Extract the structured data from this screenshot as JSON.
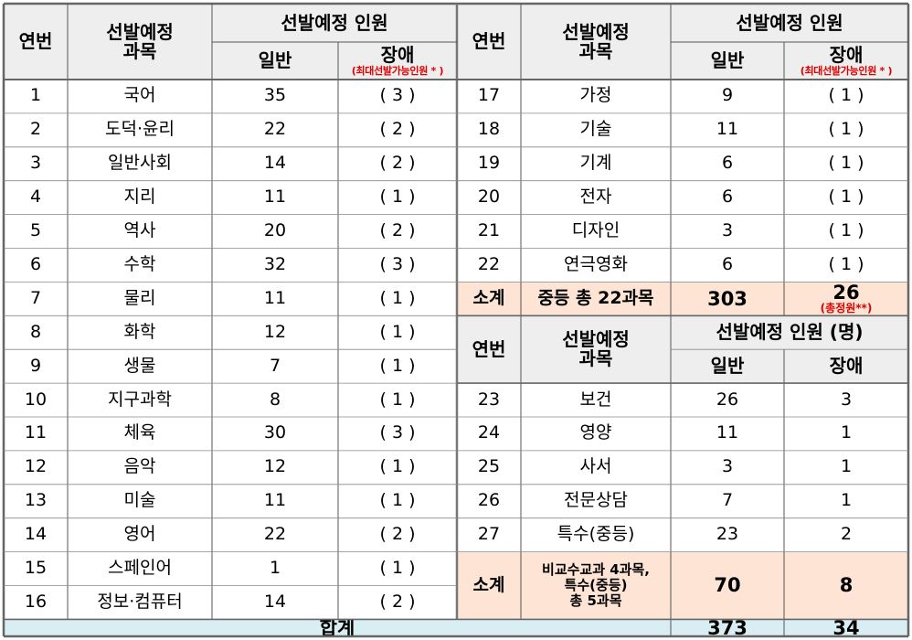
{
  "header": {
    "no": "연번",
    "subject": "선발예정\n과목",
    "quota": "선발예정 인원",
    "general": "일반",
    "disabled": "장애",
    "disabled_note": "(최대선발가능인원 * )",
    "quota_unit": "선발예정 인원 (명)"
  },
  "left_rows": [
    {
      "no": "1",
      "subject": "국어",
      "general": "35",
      "disabled": "( 3 )"
    },
    {
      "no": "2",
      "subject": "도덕·윤리",
      "general": "22",
      "disabled": "( 2 )"
    },
    {
      "no": "3",
      "subject": "일반사회",
      "general": "14",
      "disabled": "( 2 )"
    },
    {
      "no": "4",
      "subject": "지리",
      "general": "11",
      "disabled": "( 1 )"
    },
    {
      "no": "5",
      "subject": "역사",
      "general": "20",
      "disabled": "( 2 )"
    },
    {
      "no": "6",
      "subject": "수학",
      "general": "32",
      "disabled": "( 3 )"
    },
    {
      "no": "7",
      "subject": "물리",
      "general": "11",
      "disabled": "( 1 )"
    },
    {
      "no": "8",
      "subject": "화학",
      "general": "12",
      "disabled": "( 1 )"
    },
    {
      "no": "9",
      "subject": "생물",
      "general": "7",
      "disabled": "( 1 )"
    },
    {
      "no": "10",
      "subject": "지구과학",
      "general": "8",
      "disabled": "( 1 )"
    },
    {
      "no": "11",
      "subject": "체육",
      "general": "30",
      "disabled": "( 3 )"
    },
    {
      "no": "12",
      "subject": "음악",
      "general": "12",
      "disabled": "( 1 )"
    },
    {
      "no": "13",
      "subject": "미술",
      "general": "11",
      "disabled": "( 1 )"
    },
    {
      "no": "14",
      "subject": "영어",
      "general": "22",
      "disabled": "( 2 )"
    },
    {
      "no": "15",
      "subject": "스페인어",
      "general": "1",
      "disabled": "( 1 )"
    },
    {
      "no": "16",
      "subject": "정보·컴퓨터",
      "general": "14",
      "disabled": "( 2 )"
    }
  ],
  "right_rows_a": [
    {
      "no": "17",
      "subject": "가정",
      "general": "9",
      "disabled": "( 1 )"
    },
    {
      "no": "18",
      "subject": "기술",
      "general": "11",
      "disabled": "( 1 )"
    },
    {
      "no": "19",
      "subject": "기계",
      "general": "6",
      "disabled": "( 1 )"
    },
    {
      "no": "20",
      "subject": "전자",
      "general": "6",
      "disabled": "( 1 )"
    },
    {
      "no": "21",
      "subject": "디자인",
      "general": "3",
      "disabled": "( 1 )"
    },
    {
      "no": "22",
      "subject": "연극영화",
      "general": "6",
      "disabled": "( 1 )"
    }
  ],
  "subtotal_a": {
    "label": "소계",
    "subject": "중등 총 22과목",
    "general": "303",
    "disabled": "26",
    "note": "(총정원**)"
  },
  "right_rows_b": [
    {
      "no": "23",
      "subject": "보건",
      "general": "26",
      "disabled": "3"
    },
    {
      "no": "24",
      "subject": "영양",
      "general": "11",
      "disabled": "1"
    },
    {
      "no": "25",
      "subject": "사서",
      "general": "3",
      "disabled": "1"
    },
    {
      "no": "26",
      "subject": "전문상담",
      "general": "7",
      "disabled": "1"
    },
    {
      "no": "27",
      "subject": "특수(중등)",
      "general": "23",
      "disabled": "2"
    }
  ],
  "subtotal_b": {
    "label": "소계",
    "subject": "비교수교과 4과목,\n특수(중등)\n총 5과목",
    "general": "70",
    "disabled": "8"
  },
  "total": {
    "label": "합계",
    "general": "373",
    "disabled": "34"
  }
}
